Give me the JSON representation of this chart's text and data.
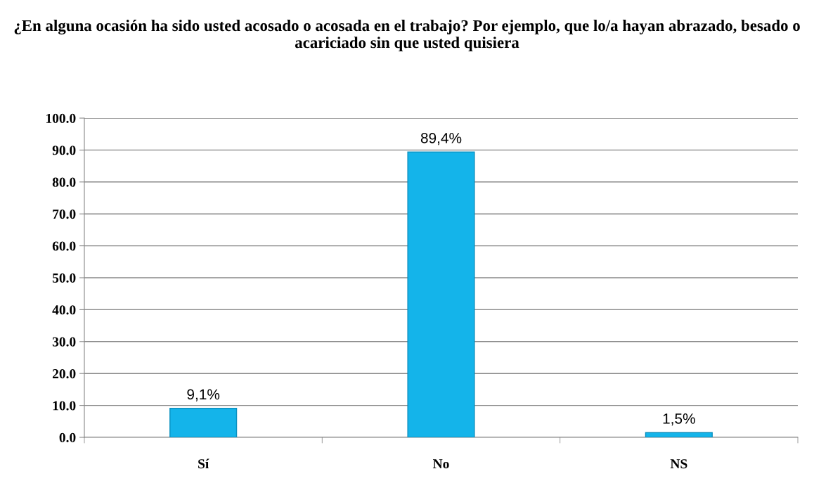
{
  "chart_data": {
    "type": "bar",
    "title": "¿En alguna ocasión ha sido usted acosado o acosada en el trabajo? Por ejemplo, que lo/a hayan abrazado, besado o acariciado sin que usted quisiera",
    "categories": [
      "Sí",
      "No",
      "NS"
    ],
    "values": [
      9.1,
      89.4,
      1.5
    ],
    "value_labels": [
      "9,1%",
      "89,4%",
      "1,5%"
    ],
    "color": "#14b4ea",
    "ylim": [
      0,
      100
    ],
    "yticks": [
      {
        "value": 0,
        "label": "0.0"
      },
      {
        "value": 10,
        "label": "10.0"
      },
      {
        "value": 20,
        "label": "20.0"
      },
      {
        "value": 30,
        "label": "30.0"
      },
      {
        "value": 40,
        "label": "40.0"
      },
      {
        "value": 50,
        "label": "50.0"
      },
      {
        "value": 60,
        "label": "60.0"
      },
      {
        "value": 70,
        "label": "70.0"
      },
      {
        "value": 80,
        "label": "80.0"
      },
      {
        "value": 90,
        "label": "90.0"
      },
      {
        "value": 100,
        "label": "100.0"
      }
    ],
    "grid": "y",
    "legend": false
  }
}
